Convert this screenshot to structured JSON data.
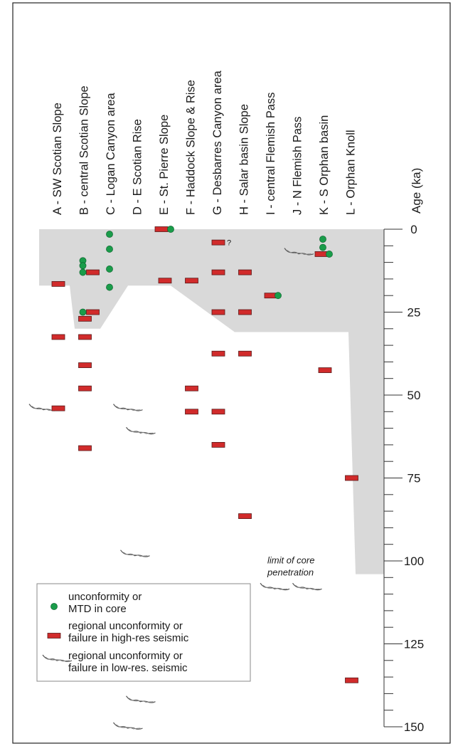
{
  "chart_data": {
    "type": "scatter",
    "title": "",
    "ylabel": "Age (ka)",
    "ylim": [
      0,
      150
    ],
    "y_ticks": [
      0,
      25,
      50,
      75,
      100,
      125,
      150
    ],
    "categories": [
      "A - SW Scotian Slope",
      "B - central Scotian Slope",
      "C - Logan Canyon area",
      "D - E Scotian Rise",
      "E - St. Pierre Slope",
      "F - Haddock Slope & Rise",
      "G - Desbarres Canyon area",
      "H - Salar basin Slope",
      "I - central Flemish Pass",
      "J - N Flemish Pass",
      "K - S Orphan basin",
      "L - Orphan Knoll"
    ],
    "core_limit_label": "limit of core penetration",
    "core_limit_ages": [
      17,
      17,
      30,
      17,
      17,
      17,
      31,
      31,
      31,
      31,
      31,
      104
    ],
    "series": [
      {
        "name": "unconformity or MTD in core",
        "points": [
          {
            "col": 1,
            "age": 9.5
          },
          {
            "col": 1,
            "age": 11
          },
          {
            "col": 1,
            "age": 13
          },
          {
            "col": 1,
            "age": 25
          },
          {
            "col": 2,
            "age": 1.5
          },
          {
            "col": 2,
            "age": 6
          },
          {
            "col": 2,
            "age": 12
          },
          {
            "col": 2,
            "age": 17.5
          },
          {
            "col": 4,
            "age": 0
          },
          {
            "col": 8,
            "age": 20
          },
          {
            "col": 10,
            "age": 3
          },
          {
            "col": 10,
            "age": 5.5
          },
          {
            "col": 10,
            "age": 7.5
          }
        ]
      },
      {
        "name": "regional unconformity or failure in high-res seismic",
        "points": [
          {
            "col": 0,
            "age": 16.5
          },
          {
            "col": 0,
            "age": 32.5
          },
          {
            "col": 0,
            "age": 54
          },
          {
            "col": 1,
            "age": 13
          },
          {
            "col": 1,
            "age": 25
          },
          {
            "col": 1,
            "age": 27
          },
          {
            "col": 1,
            "age": 32.5
          },
          {
            "col": 1,
            "age": 41
          },
          {
            "col": 1,
            "age": 48
          },
          {
            "col": 1,
            "age": 66
          },
          {
            "col": 4,
            "age": 0
          },
          {
            "col": 4,
            "age": 15.5
          },
          {
            "col": 5,
            "age": 15.5
          },
          {
            "col": 5,
            "age": 48
          },
          {
            "col": 5,
            "age": 55
          },
          {
            "col": 6,
            "age": 4
          },
          {
            "col": 6,
            "age": 13
          },
          {
            "col": 6,
            "age": 25
          },
          {
            "col": 6,
            "age": 37.5
          },
          {
            "col": 6,
            "age": 55
          },
          {
            "col": 6,
            "age": 65
          },
          {
            "col": 7,
            "age": 13
          },
          {
            "col": 7,
            "age": 25
          },
          {
            "col": 7,
            "age": 37.5
          },
          {
            "col": 7,
            "age": 86.5
          },
          {
            "col": 8,
            "age": 20
          },
          {
            "col": 10,
            "age": 7.5
          },
          {
            "col": 10,
            "age": 42.5
          },
          {
            "col": 11,
            "age": 75
          },
          {
            "col": 11,
            "age": 136
          }
        ]
      },
      {
        "name": "regional unconformity or failure in low-res. seismic",
        "points": [
          {
            "col": 0,
            "age": 54
          },
          {
            "col": 3,
            "age": 54
          },
          {
            "col": 3,
            "age": 61
          },
          {
            "col": 3,
            "age": 98
          },
          {
            "col": 3,
            "age": 142
          },
          {
            "col": 3,
            "age": 150
          },
          {
            "col": 8,
            "age": 108
          },
          {
            "col": 9,
            "age": 108
          },
          {
            "col": 10,
            "age": 7
          }
        ]
      }
    ],
    "annotations": [
      {
        "text": "?",
        "col": 6,
        "age": 4
      }
    ]
  },
  "legend": {
    "items": [
      {
        "symbol": "circle",
        "line1": "unconformity or",
        "line2": "MTD in core"
      },
      {
        "symbol": "bar",
        "line1": "regional unconformity or",
        "line2": "failure in high-res seismic"
      },
      {
        "symbol": "squiggle",
        "line1": "regional unconformity or",
        "line2": "failure in low-res. seismic"
      }
    ]
  },
  "colors": {
    "core_fill": "#d9d9d9",
    "marker_red": "#d12b2b",
    "marker_red_edge": "#5a1a1a",
    "marker_green": "#1a9c4a",
    "frame": "#222222"
  }
}
